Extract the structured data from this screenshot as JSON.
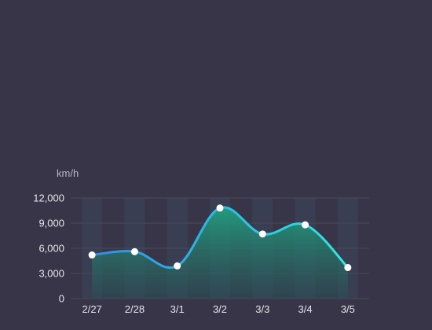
{
  "chart_data": {
    "type": "area",
    "ylabel": "km/h",
    "categories": [
      "2/27",
      "2/28",
      "3/1",
      "3/2",
      "3/3",
      "3/4",
      "3/5"
    ],
    "series": [
      {
        "values": [
          5200,
          5600,
          3900,
          10800,
          7700,
          8800,
          3700
        ]
      }
    ],
    "ylim": [
      0,
      12000
    ],
    "yticks": [
      0,
      3000,
      6000,
      9000,
      12000
    ],
    "ytick_labels": [
      "0",
      "3,000",
      "6,000",
      "9,000",
      "12,000"
    ],
    "grid": true,
    "smooth": true,
    "legend": "none"
  },
  "colors": {
    "background": "#373547",
    "line_start": "#2f8ee8",
    "line_end": "#2ee8e0",
    "area_top": "#21a080",
    "area_bottom": "#2b4e54",
    "column_band": "#3c4358",
    "grid": "#4a4a5a",
    "point_fill": "#ffffff"
  }
}
